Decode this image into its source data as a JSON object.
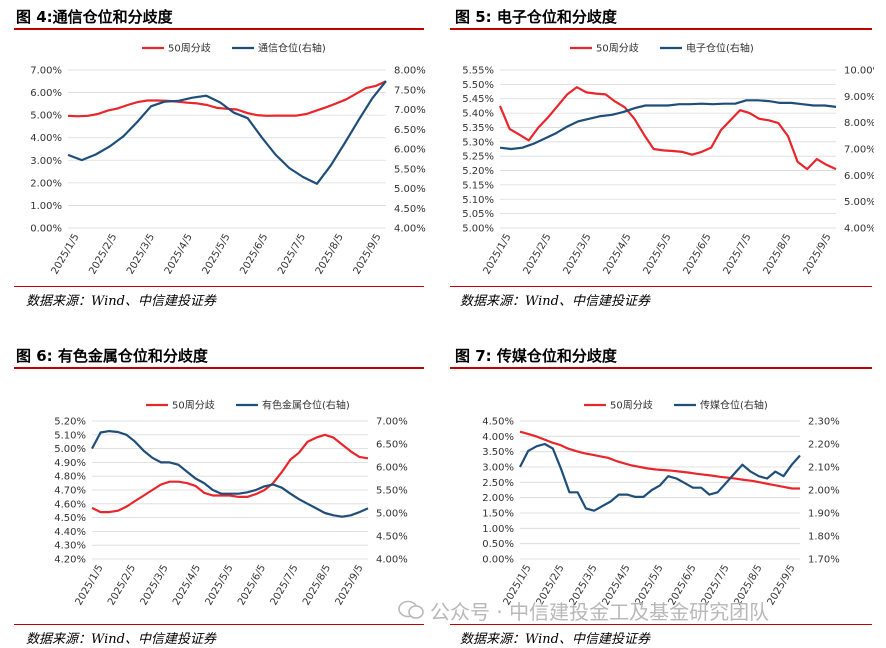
{
  "watermark": "公众号 · 中信建投金工及基金研究团队",
  "colors": {
    "red": "#e8262b",
    "blue": "#1f4e79",
    "accent": "#c00000",
    "grid": "#d9d9d9"
  },
  "chart_data": [
    {
      "type": "line",
      "title": "图 4:通信仓位和分歧度",
      "source": "数据来源：Wind、中信建投证券",
      "x_ticks": [
        "2025/1/5",
        "2025/2/5",
        "2025/3/5",
        "2025/4/5",
        "2025/5/5",
        "2025/6/5",
        "2025/7/5",
        "2025/8/5",
        "2025/9/5"
      ],
      "y_left": {
        "ticks": [
          "0.00%",
          "1.00%",
          "2.00%",
          "3.00%",
          "4.00%",
          "5.00%",
          "6.00%",
          "7.00%"
        ],
        "min": 0,
        "max": 7
      },
      "y_right": {
        "ticks": [
          "4.00%",
          "4.50%",
          "5.00%",
          "5.50%",
          "6.00%",
          "6.50%",
          "7.00%",
          "7.50%",
          "8.00%"
        ],
        "min": 4,
        "max": 8
      },
      "series": [
        {
          "name": "50周分歧",
          "axis": "left",
          "color": "red",
          "values": [
            4.97,
            4.95,
            4.97,
            5.05,
            5.2,
            5.3,
            5.45,
            5.58,
            5.65,
            5.65,
            5.63,
            5.6,
            5.55,
            5.52,
            5.45,
            5.32,
            5.28,
            5.25,
            5.1,
            5.0,
            4.97,
            4.98,
            4.98,
            4.98,
            5.05,
            5.2,
            5.35,
            5.52,
            5.7,
            5.95,
            6.2,
            6.3,
            6.5
          ]
        },
        {
          "name": "通信仓位(右轴)",
          "axis": "right",
          "color": "blue",
          "values": [
            5.85,
            5.72,
            5.86,
            6.06,
            6.32,
            6.68,
            7.08,
            7.2,
            7.22,
            7.3,
            7.35,
            7.18,
            6.92,
            6.78,
            6.3,
            5.86,
            5.52,
            5.29,
            5.12,
            5.58,
            6.14,
            6.72,
            7.28,
            7.72
          ]
        }
      ]
    },
    {
      "type": "line",
      "title": "图 5:  电子仓位和分歧度",
      "source": "数据来源：Wind、中信建投证券",
      "x_ticks": [
        "2025/1/5",
        "2025/2/5",
        "2025/3/5",
        "2025/4/5",
        "2025/5/5",
        "2025/6/5",
        "2025/7/5",
        "2025/8/5",
        "2025/9/5"
      ],
      "y_left": {
        "ticks": [
          "5.00%",
          "5.05%",
          "5.10%",
          "5.15%",
          "5.20%",
          "5.25%",
          "5.30%",
          "5.35%",
          "5.40%",
          "5.45%",
          "5.50%",
          "5.55%"
        ],
        "min": 5.0,
        "max": 5.55
      },
      "y_right": {
        "ticks": [
          "4.00%",
          "5.00%",
          "6.00%",
          "7.00%",
          "8.00%",
          "9.00%",
          "10.00%"
        ],
        "min": 4,
        "max": 10
      },
      "series": [
        {
          "name": "50周分歧",
          "axis": "left",
          "color": "red",
          "values": [
            5.425,
            5.345,
            5.325,
            5.305,
            5.35,
            5.385,
            5.425,
            5.465,
            5.49,
            5.472,
            5.468,
            5.465,
            5.44,
            5.42,
            5.38,
            5.325,
            5.275,
            5.27,
            5.268,
            5.265,
            5.255,
            5.265,
            5.28,
            5.34,
            5.375,
            5.41,
            5.4,
            5.38,
            5.375,
            5.365,
            5.32,
            5.23,
            5.205,
            5.24,
            5.22,
            5.205
          ]
        },
        {
          "name": "电子仓位(右轴)",
          "axis": "right",
          "color": "blue",
          "values": [
            7.05,
            7.0,
            7.05,
            7.2,
            7.4,
            7.6,
            7.85,
            8.05,
            8.15,
            8.25,
            8.3,
            8.4,
            8.55,
            8.65,
            8.65,
            8.65,
            8.7,
            8.7,
            8.72,
            8.7,
            8.72,
            8.72,
            8.85,
            8.85,
            8.82,
            8.75,
            8.75,
            8.7,
            8.65,
            8.65,
            8.6
          ]
        }
      ]
    },
    {
      "type": "line",
      "title": "图 6:  有色金属仓位和分歧度",
      "source": "数据来源：Wind、中信建投证券",
      "x_ticks": [
        "2025/1/5",
        "2025/2/5",
        "2025/3/5",
        "2025/4/5",
        "2025/5/5",
        "2025/6/5",
        "2025/7/5",
        "2025/8/5",
        "2025/9/5"
      ],
      "y_left": {
        "ticks": [
          "4.20%",
          "4.30%",
          "4.40%",
          "4.50%",
          "4.60%",
          "4.70%",
          "4.80%",
          "4.90%",
          "5.00%",
          "5.10%",
          "5.20%"
        ],
        "min": 4.2,
        "max": 5.2
      },
      "y_right": {
        "ticks": [
          "4.00%",
          "4.50%",
          "5.00%",
          "5.50%",
          "6.00%",
          "6.50%",
          "7.00%"
        ],
        "min": 4,
        "max": 7
      },
      "series": [
        {
          "name": "50周分歧",
          "axis": "left",
          "color": "red",
          "values": [
            4.57,
            4.54,
            4.54,
            4.55,
            4.58,
            4.62,
            4.66,
            4.7,
            4.74,
            4.76,
            4.76,
            4.75,
            4.73,
            4.68,
            4.66,
            4.66,
            4.66,
            4.65,
            4.65,
            4.67,
            4.7,
            4.75,
            4.83,
            4.92,
            4.97,
            5.05,
            5.08,
            5.1,
            5.08,
            5.03,
            4.98,
            4.94,
            4.93
          ]
        },
        {
          "name": "有色金属仓位(右轴)",
          "axis": "right",
          "color": "blue",
          "values": [
            6.4,
            6.75,
            6.78,
            6.76,
            6.7,
            6.55,
            6.35,
            6.2,
            6.1,
            6.1,
            6.05,
            5.9,
            5.75,
            5.65,
            5.5,
            5.42,
            5.42,
            5.42,
            5.45,
            5.5,
            5.58,
            5.62,
            5.55,
            5.42,
            5.3,
            5.2,
            5.1,
            5.0,
            4.95,
            4.92,
            4.95,
            5.02,
            5.1
          ]
        }
      ]
    },
    {
      "type": "line",
      "title": "图 7:  传媒仓位和分歧度",
      "source": "数据来源：Wind、中信建投证券",
      "x_ticks": [
        "2025/1/5",
        "2025/2/5",
        "2025/3/5",
        "2025/4/5",
        "2025/5/5",
        "2025/6/5",
        "2025/7/5",
        "2025/8/5",
        "2025/9/5"
      ],
      "y_left": {
        "ticks": [
          "0.00%",
          "0.50%",
          "1.00%",
          "1.50%",
          "2.00%",
          "2.50%",
          "3.00%",
          "3.50%",
          "4.00%",
          "4.50%"
        ],
        "min": 0,
        "max": 4.5
      },
      "y_right": {
        "ticks": [
          "1.70%",
          "1.80%",
          "1.90%",
          "2.00%",
          "2.10%",
          "2.20%",
          "2.30%"
        ],
        "min": 1.7,
        "max": 2.3
      },
      "series": [
        {
          "name": "50周分歧",
          "axis": "left",
          "color": "red",
          "values": [
            4.15,
            4.08,
            4.0,
            3.9,
            3.8,
            3.72,
            3.6,
            3.52,
            3.45,
            3.4,
            3.35,
            3.3,
            3.2,
            3.12,
            3.05,
            3.0,
            2.95,
            2.92,
            2.9,
            2.88,
            2.85,
            2.82,
            2.78,
            2.75,
            2.72,
            2.68,
            2.65,
            2.62,
            2.58,
            2.55,
            2.5,
            2.45,
            2.4,
            2.35,
            2.3,
            2.3
          ]
        },
        {
          "name": "传媒仓位(右轴)",
          "axis": "right",
          "color": "blue",
          "values": [
            2.1,
            2.17,
            2.19,
            2.2,
            2.18,
            2.09,
            1.99,
            1.99,
            1.92,
            1.91,
            1.93,
            1.95,
            1.98,
            1.98,
            1.97,
            1.97,
            2.0,
            2.02,
            2.06,
            2.05,
            2.03,
            2.01,
            2.01,
            1.98,
            1.99,
            2.03,
            2.07,
            2.11,
            2.08,
            2.06,
            2.05,
            2.08,
            2.06,
            2.11,
            2.15
          ]
        }
      ]
    }
  ]
}
